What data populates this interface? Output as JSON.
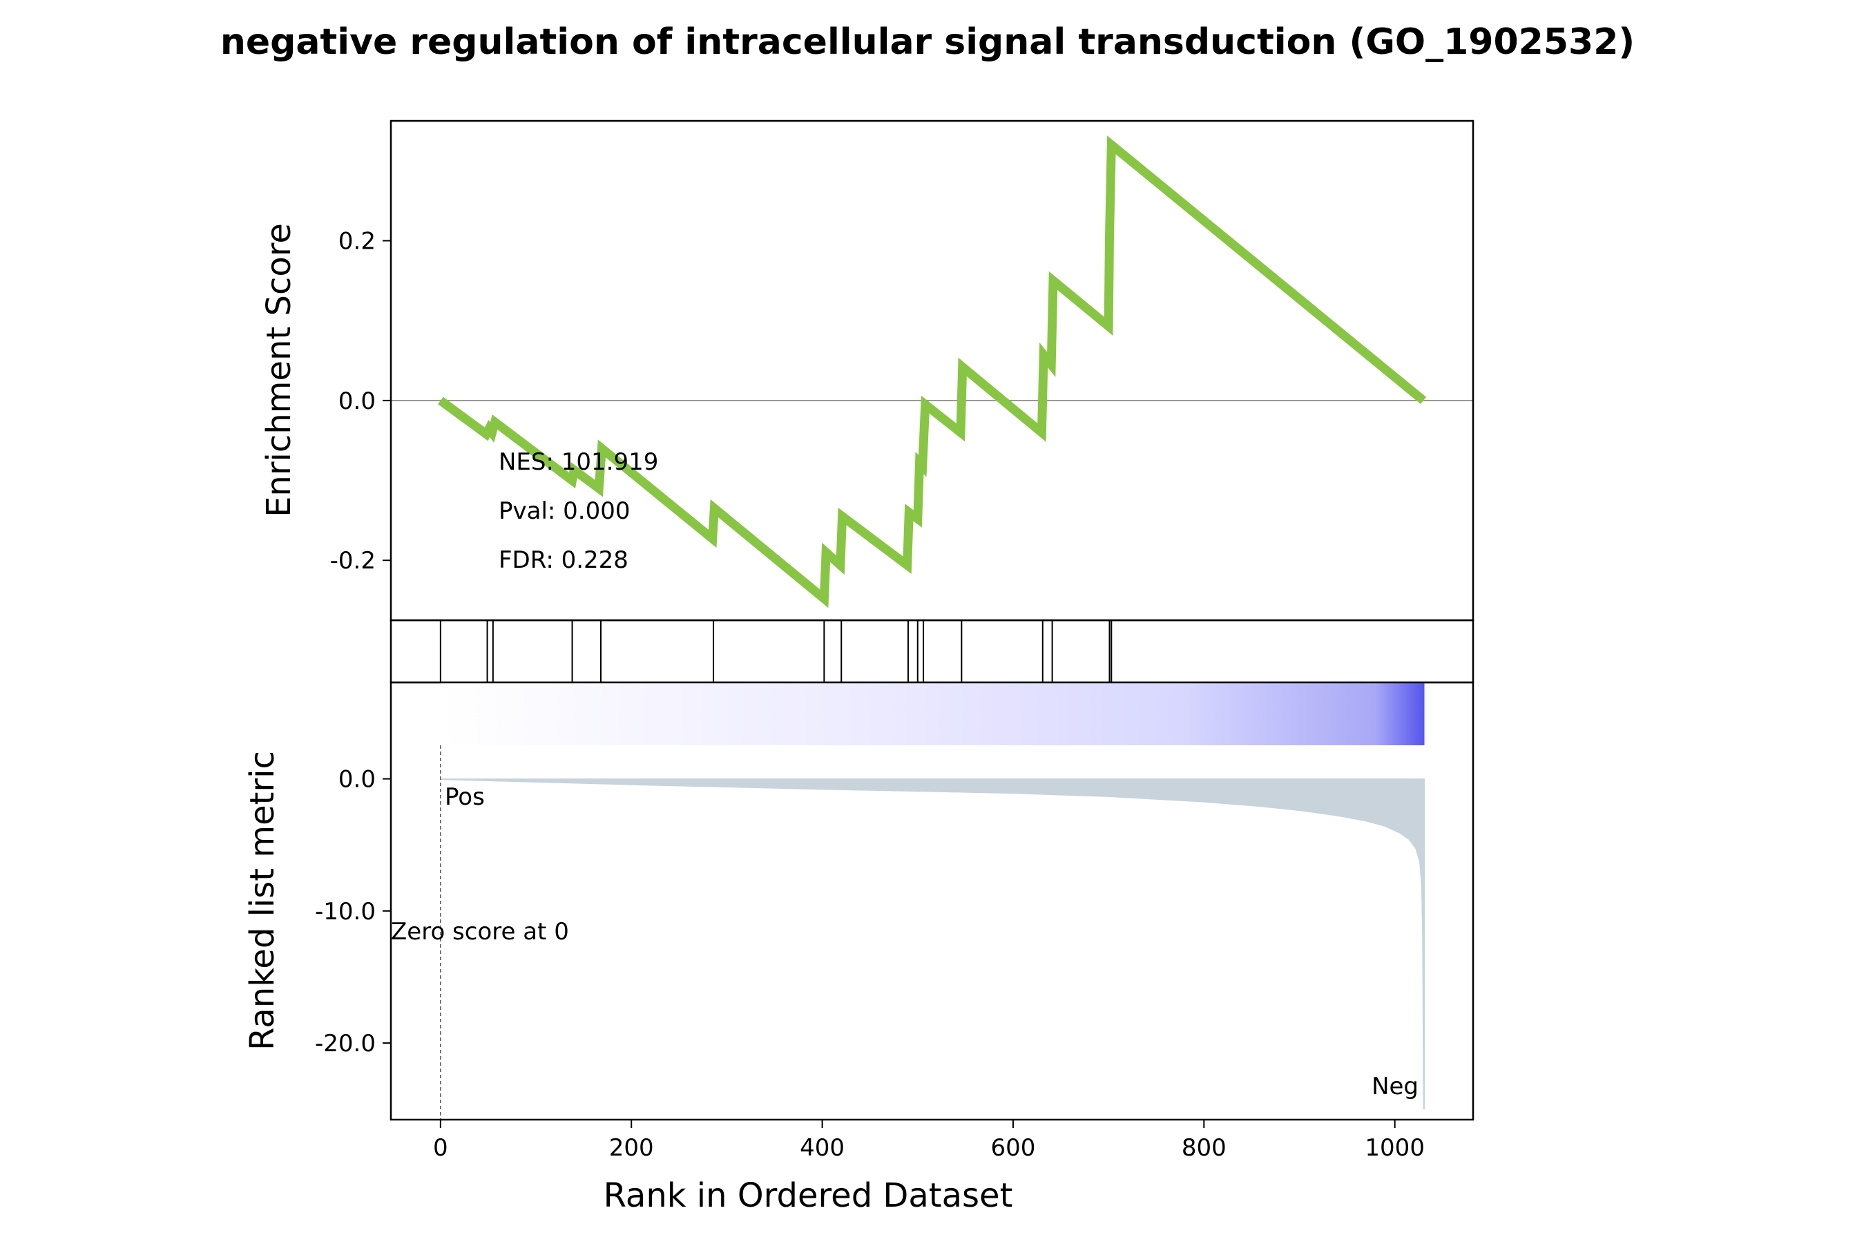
{
  "chart_data": {
    "type": "line",
    "title": "negative regulation of intracellular signal transduction (GO_1902532)",
    "xlabel": "Rank in Ordered Dataset",
    "xlim": [
      -52,
      1082
    ],
    "xticks": [
      0,
      200,
      400,
      600,
      800,
      1000
    ],
    "xtick_labels": [
      "0",
      "200",
      "400",
      "600",
      "800",
      "1000"
    ],
    "enrichment": {
      "ylabel": "Enrichment Score",
      "ylim": [
        -0.275,
        0.35
      ],
      "yticks": [
        0.2,
        0.0,
        -0.2
      ],
      "ytick_labels": [
        "0.2",
        "0.0",
        "-0.2"
      ],
      "color": "#88c544",
      "zero_line_color": "#808080",
      "points": [
        [
          0,
          0.0
        ],
        [
          48,
          -0.042
        ],
        [
          51,
          -0.035
        ],
        [
          54,
          -0.04
        ],
        [
          57,
          -0.027
        ],
        [
          138,
          -0.1
        ],
        [
          140,
          -0.087
        ],
        [
          166,
          -0.11
        ],
        [
          169,
          -0.06
        ],
        [
          285,
          -0.173
        ],
        [
          287,
          -0.135
        ],
        [
          402,
          -0.248
        ],
        [
          404,
          -0.19
        ],
        [
          419,
          -0.206
        ],
        [
          421,
          -0.145
        ],
        [
          489,
          -0.206
        ],
        [
          491,
          -0.14
        ],
        [
          500,
          -0.148
        ],
        [
          502,
          -0.078
        ],
        [
          505,
          -0.082
        ],
        [
          508,
          -0.005
        ],
        [
          545,
          -0.04
        ],
        [
          547,
          0.042
        ],
        [
          630,
          -0.04
        ],
        [
          632,
          0.057
        ],
        [
          640,
          0.045
        ],
        [
          642,
          0.15
        ],
        [
          700,
          0.093
        ],
        [
          701,
          0.205
        ],
        [
          703,
          0.32
        ],
        [
          1030,
          0.0
        ]
      ],
      "annotations": {
        "nes": "NES: 101.919",
        "pval": "Pval: 0.000",
        "fdr": "FDR: 0.228"
      }
    },
    "hits": [
      0,
      49,
      55,
      138,
      168,
      286,
      402,
      420,
      490,
      500,
      506,
      546,
      631,
      641,
      701,
      703
    ],
    "heatmap": {
      "from_color": "#ffffff",
      "to_color": "#5555ee",
      "xrange": [
        0,
        1031
      ]
    },
    "ranked_metric": {
      "ylabel": "Ranked list metric",
      "ylim": [
        -25.8,
        7.3
      ],
      "yticks": [
        0.0,
        -10.0,
        -20.0
      ],
      "ytick_labels": [
        "0.0",
        "-10.0",
        "-20.0"
      ],
      "fill_color": "#c8d3dc",
      "curve": [
        [
          0,
          -0.05
        ],
        [
          200,
          -0.45
        ],
        [
          400,
          -0.8
        ],
        [
          600,
          -1.1
        ],
        [
          700,
          -1.35
        ],
        [
          800,
          -1.75
        ],
        [
          860,
          -2.1
        ],
        [
          900,
          -2.4
        ],
        [
          940,
          -2.8
        ],
        [
          970,
          -3.2
        ],
        [
          990,
          -3.6
        ],
        [
          1005,
          -4.1
        ],
        [
          1015,
          -4.6
        ],
        [
          1022,
          -5.3
        ],
        [
          1026,
          -6.3
        ],
        [
          1028,
          -8.0
        ],
        [
          1029,
          -12.0
        ],
        [
          1030,
          -25.0
        ],
        [
          1031,
          -25.0
        ]
      ],
      "pos_label": "Pos",
      "pos_color": "#ff0000",
      "neg_label": "Neg",
      "neg_color": "#0000ff",
      "zero_score_text": "Zero score at 0",
      "zero_score_rank": 0
    }
  }
}
